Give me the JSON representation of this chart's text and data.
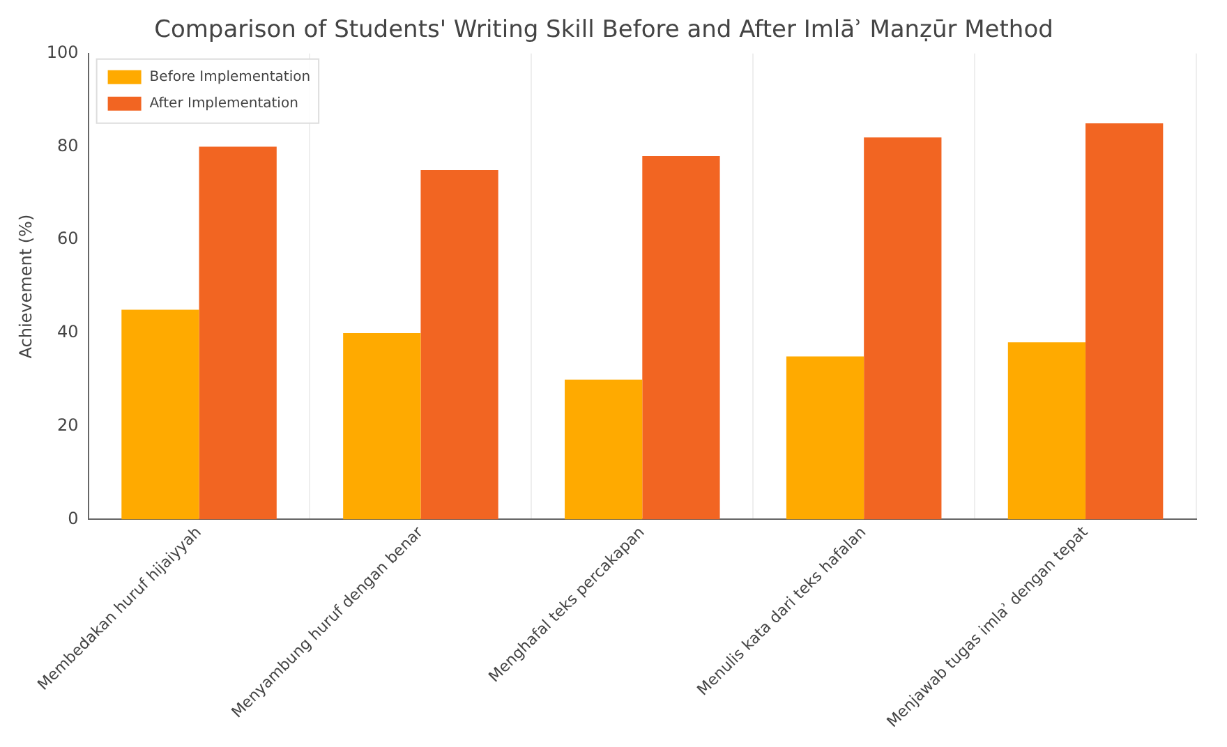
{
  "chart_data": {
    "type": "bar",
    "title": "Comparison of Students' Writing Skill Before and After Imlāʾ Manẓūr Method",
    "ylabel": "Achievement (%)",
    "categories": [
      "Membedakan huruf hijaiyyah",
      "Menyambung huruf dengan benar",
      "Menghafal teks percakapan",
      "Menulis kata dari teks hafalan",
      "Menjawab tugas imlaʾ dengan tepat"
    ],
    "series": [
      {
        "name": "Before Implementation",
        "color": "#ffaa00",
        "values": [
          45,
          40,
          30,
          35,
          38
        ]
      },
      {
        "name": "After Implementation",
        "color": "#f26522",
        "values": [
          80,
          75,
          78,
          82,
          85
        ]
      }
    ],
    "ylim": [
      0,
      100
    ],
    "yticks": [
      0,
      20,
      40,
      60,
      80,
      100
    ],
    "grid": "x",
    "legend": "top left"
  }
}
